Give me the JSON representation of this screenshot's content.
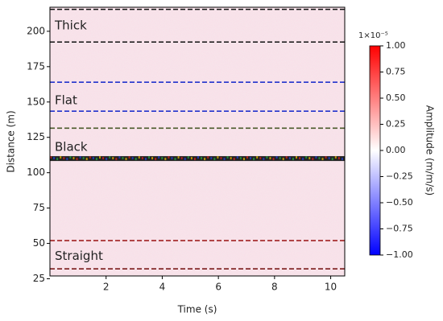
{
  "chart_data": {
    "type": "heatmap",
    "xlabel": "Time (s)",
    "ylabel": "Distance (m)",
    "xlim": [
      0,
      10.5
    ],
    "xticks": [
      2,
      4,
      6,
      8,
      10
    ],
    "ylim": [
      27,
      217
    ],
    "yticks": [
      25,
      50,
      75,
      100,
      125,
      150,
      175,
      200
    ],
    "lines": [
      {
        "y": 215.5,
        "color": "#111111",
        "style": "dashed"
      },
      {
        "y": 192.4,
        "color": "#111111",
        "style": "dashed"
      },
      {
        "y": 164,
        "color": "#2233cc",
        "style": "dashed"
      },
      {
        "y": 143.5,
        "color": "#2233cc",
        "style": "dashed"
      },
      {
        "y": 131.5,
        "color": "#4a5a2a",
        "style": "dashed"
      },
      {
        "y": 110,
        "color": "#222222",
        "style": "band"
      },
      {
        "y": 52,
        "color": "#a02020",
        "style": "dashed"
      },
      {
        "y": 32,
        "color": "#7a1a1a",
        "style": "dashed"
      }
    ],
    "annotations": [
      {
        "text": "Thick",
        "y": 204,
        "color": "#1a1a1a"
      },
      {
        "text": "Flat",
        "y": 151,
        "color": "#3a5ccc"
      },
      {
        "text": "Black",
        "y": 118,
        "color": "#2e9a5a"
      },
      {
        "text": "Straight",
        "y": 41,
        "color": "#c0392b"
      }
    ],
    "colorbar": {
      "label": "Amplitude (m/m/s)",
      "scale_label": "1×10⁻⁵",
      "colormap": [
        "#0000ff",
        "#ffffff",
        "#ff0000"
      ],
      "clim": [
        -1,
        1
      ],
      "ticks": [
        {
          "value": -1,
          "label": "−1.00"
        },
        {
          "value": -0.75,
          "label": "−0.75"
        },
        {
          "value": -0.5,
          "label": "−0.50"
        },
        {
          "value": -0.25,
          "label": "−0.25"
        },
        {
          "value": 0,
          "label": "0.00"
        },
        {
          "value": 0.25,
          "label": "0.25"
        },
        {
          "value": 0.5,
          "label": "0.50"
        },
        {
          "value": 0.75,
          "label": "0.75"
        },
        {
          "value": 1,
          "label": "1.00"
        }
      ]
    }
  }
}
